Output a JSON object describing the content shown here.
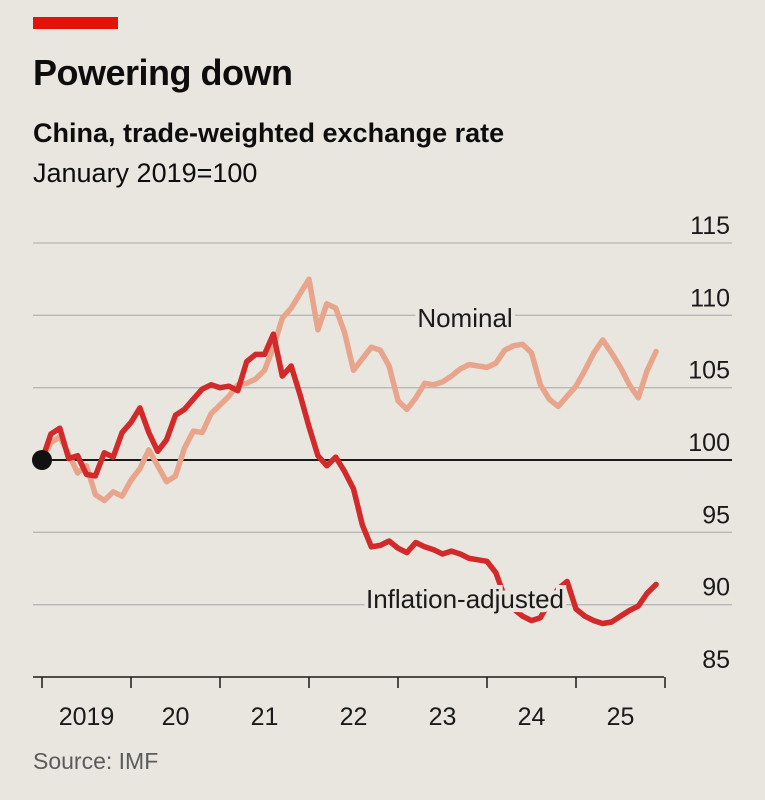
{
  "title": "Powering down",
  "subtitle": "China, trade-weighted exchange rate",
  "unit_note": "January 2019=100",
  "source": "Source: IMF",
  "colors": {
    "background": "#e9e6df",
    "accent": "#e3120b",
    "nominal": "#e8a58c",
    "inflation_adjusted": "#d22a2a",
    "grid": "#b7b7b7",
    "baseline": "#1a1a1a"
  },
  "chart_data": {
    "type": "line",
    "title": "China, trade-weighted exchange rate",
    "ylabel": "January 2019=100",
    "xlabel": "",
    "ylim": [
      85,
      115
    ],
    "xlim": [
      2019.0,
      2026.0
    ],
    "yticks": [
      85,
      90,
      95,
      100,
      105,
      110,
      115
    ],
    "xtick_labels": [
      {
        "label": "2019",
        "year": 2019
      },
      {
        "label": "20",
        "year": 2020
      },
      {
        "label": "21",
        "year": 2021
      },
      {
        "label": "22",
        "year": 2022
      },
      {
        "label": "23",
        "year": 2023
      },
      {
        "label": "24",
        "year": 2024
      },
      {
        "label": "25",
        "year": 2025
      }
    ],
    "baseline": 100,
    "grid": true,
    "series": [
      {
        "name": "Nominal",
        "x": [
          2019.0,
          2019.1,
          2019.2,
          2019.3,
          2019.4,
          2019.5,
          2019.6,
          2019.7,
          2019.8,
          2019.9,
          2020.0,
          2020.1,
          2020.2,
          2020.3,
          2020.4,
          2020.5,
          2020.6,
          2020.7,
          2020.8,
          2020.9,
          2021.0,
          2021.1,
          2021.2,
          2021.3,
          2021.4,
          2021.5,
          2021.6,
          2021.7,
          2021.8,
          2021.9,
          2022.0,
          2022.1,
          2022.2,
          2022.3,
          2022.4,
          2022.5,
          2022.6,
          2022.7,
          2022.8,
          2022.9,
          2023.0,
          2023.1,
          2023.2,
          2023.3,
          2023.4,
          2023.5,
          2023.6,
          2023.7,
          2023.8,
          2023.9,
          2024.0,
          2024.1,
          2024.2,
          2024.3,
          2024.4,
          2024.5,
          2024.6,
          2024.7,
          2024.8,
          2024.9,
          2025.0,
          2025.1,
          2025.2,
          2025.3,
          2025.4,
          2025.5,
          2025.6,
          2025.7,
          2025.8,
          2025.9
        ],
        "values": [
          100.0,
          101.2,
          101.6,
          100.4,
          99.1,
          99.6,
          97.6,
          97.2,
          97.8,
          97.5,
          98.6,
          99.4,
          100.7,
          99.6,
          98.5,
          98.9,
          100.8,
          102.0,
          101.9,
          103.2,
          103.8,
          104.4,
          105.2,
          105.3,
          105.6,
          106.2,
          107.8,
          109.8,
          110.5,
          111.5,
          112.5,
          109.0,
          110.8,
          110.5,
          108.8,
          106.2,
          107.0,
          107.8,
          107.6,
          106.5,
          104.1,
          103.5,
          104.3,
          105.3,
          105.2,
          105.4,
          105.8,
          106.3,
          106.6,
          106.5,
          106.4,
          106.7,
          107.6,
          107.9,
          108.0,
          107.4,
          105.2,
          104.2,
          103.7,
          104.4,
          105.1,
          106.2,
          107.4,
          108.3,
          107.4,
          106.4,
          105.2,
          104.3,
          106.2,
          107.5
        ]
      },
      {
        "name": "Inflation-adjusted",
        "x": [
          2019.0,
          2019.1,
          2019.2,
          2019.3,
          2019.4,
          2019.5,
          2019.6,
          2019.7,
          2019.8,
          2019.9,
          2020.0,
          2020.1,
          2020.2,
          2020.3,
          2020.4,
          2020.5,
          2020.6,
          2020.7,
          2020.8,
          2020.9,
          2021.0,
          2021.1,
          2021.2,
          2021.3,
          2021.4,
          2021.5,
          2021.6,
          2021.7,
          2021.8,
          2021.9,
          2022.0,
          2022.1,
          2022.2,
          2022.3,
          2022.4,
          2022.5,
          2022.6,
          2022.7,
          2022.8,
          2022.9,
          2023.0,
          2023.1,
          2023.2,
          2023.3,
          2023.4,
          2023.5,
          2023.6,
          2023.7,
          2023.8,
          2023.9,
          2024.0,
          2024.1,
          2024.2,
          2024.3,
          2024.4,
          2024.5,
          2024.6,
          2024.7,
          2024.8,
          2024.9,
          2025.0,
          2025.1,
          2025.2,
          2025.3,
          2025.4,
          2025.5,
          2025.6,
          2025.7,
          2025.8,
          2025.9
        ],
        "values": [
          100.0,
          101.8,
          102.2,
          100.1,
          100.3,
          99.0,
          98.9,
          100.5,
          100.2,
          101.9,
          102.6,
          103.6,
          101.9,
          100.6,
          101.4,
          103.1,
          103.5,
          104.2,
          104.9,
          105.2,
          105.0,
          105.1,
          104.8,
          106.8,
          107.3,
          107.3,
          108.7,
          105.8,
          106.5,
          104.5,
          102.3,
          100.3,
          99.6,
          100.2,
          99.2,
          98.0,
          95.5,
          94.0,
          94.1,
          94.4,
          93.9,
          93.6,
          94.3,
          94.0,
          93.8,
          93.5,
          93.7,
          93.5,
          93.2,
          93.1,
          93.0,
          92.2,
          90.5,
          89.7,
          89.2,
          88.9,
          89.1,
          90.2,
          91.1,
          91.6,
          89.7,
          89.2,
          88.9,
          88.7,
          88.8,
          89.2,
          89.6,
          89.9,
          90.8,
          91.4
        ]
      }
    ],
    "annotations": [
      {
        "text": "Nominal",
        "series": "Nominal"
      },
      {
        "text": "Inflation-adjusted",
        "series": "Inflation-adjusted"
      }
    ]
  }
}
